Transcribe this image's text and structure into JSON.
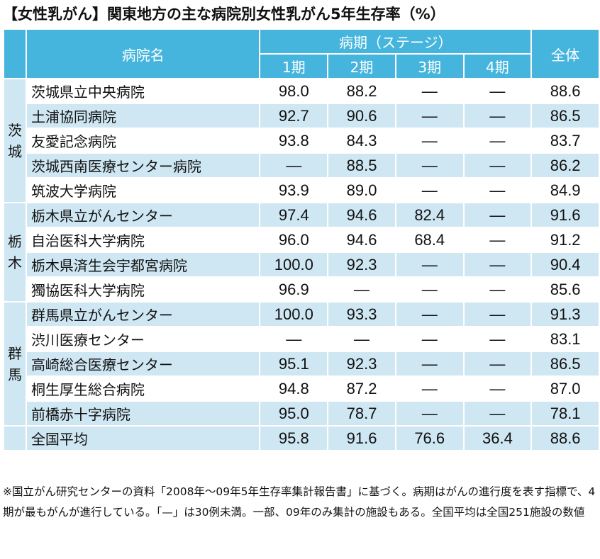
{
  "title": "【女性乳がん】関東地方の主な病院別女性乳がん5年生存率（%）",
  "header": {
    "hospital": "病院名",
    "stage_group": "病期（ステージ）",
    "stages": [
      "1期",
      "2期",
      "3期",
      "4期"
    ],
    "overall": "全体"
  },
  "groups": [
    {
      "pref": "茨城",
      "rows": [
        {
          "name": "茨城県立中央病院",
          "v": [
            "98.0",
            "88.2",
            "—",
            "—",
            "88.6"
          ]
        },
        {
          "name": "土浦協同病院",
          "v": [
            "92.7",
            "90.6",
            "—",
            "—",
            "86.5"
          ]
        },
        {
          "name": "友愛記念病院",
          "v": [
            "93.8",
            "84.3",
            "—",
            "—",
            "83.7"
          ]
        },
        {
          "name": "茨城西南医療センター病院",
          "v": [
            "—",
            "88.5",
            "—",
            "—",
            "86.2"
          ]
        },
        {
          "name": "筑波大学病院",
          "v": [
            "93.9",
            "89.0",
            "—",
            "—",
            "84.9"
          ]
        }
      ]
    },
    {
      "pref": "栃木",
      "rows": [
        {
          "name": "栃木県立がんセンター",
          "v": [
            "97.4",
            "94.6",
            "82.4",
            "—",
            "91.6"
          ]
        },
        {
          "name": "自治医科大学病院",
          "v": [
            "96.0",
            "94.6",
            "68.4",
            "—",
            "91.2"
          ]
        },
        {
          "name": "栃木県済生会宇都宮病院",
          "v": [
            "100.0",
            "92.3",
            "—",
            "—",
            "90.4"
          ]
        },
        {
          "name": "獨協医科大学病院",
          "v": [
            "96.9",
            "—",
            "—",
            "—",
            "85.6"
          ]
        }
      ]
    },
    {
      "pref": "群馬",
      "rows": [
        {
          "name": "群馬県立がんセンター",
          "v": [
            "100.0",
            "93.3",
            "—",
            "—",
            "91.3"
          ]
        },
        {
          "name": "渋川医療センター",
          "v": [
            "—",
            "—",
            "—",
            "—",
            "83.1"
          ]
        },
        {
          "name": "高崎総合医療センター",
          "v": [
            "95.1",
            "92.3",
            "—",
            "—",
            "86.5"
          ]
        },
        {
          "name": "桐生厚生総合病院",
          "v": [
            "94.8",
            "87.2",
            "—",
            "—",
            "87.0"
          ]
        },
        {
          "name": "前橋赤十字病院",
          "v": [
            "95.0",
            "78.7",
            "—",
            "—",
            "78.1"
          ]
        }
      ]
    }
  ],
  "national": {
    "name": "全国平均",
    "v": [
      "95.8",
      "91.6",
      "76.6",
      "36.4",
      "88.6"
    ]
  },
  "note": "※国立がん研究センターの資料「2008年～09年5年生存率集計報告書」に基づく。病期はがんの進行度を表す指標で、4期が最もがんが進行している。「—」は30例未満。一部、09年のみ集計の施設もある。全国平均は全国251施設の数値"
}
